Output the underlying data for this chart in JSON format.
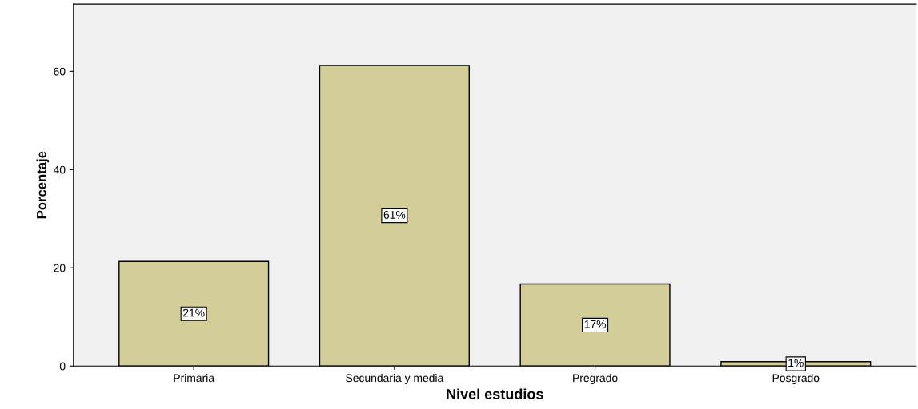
{
  "chart_data": {
    "type": "bar",
    "xlabel": "Nivel estudios",
    "ylabel": "Porcentaje",
    "categories": [
      "Primaria",
      "Secundaria y media",
      "Pregrado",
      "Posgrado"
    ],
    "values": [
      21.3,
      61.2,
      16.7,
      0.9
    ],
    "value_labels": [
      "21%",
      "61%",
      "17%",
      "1%"
    ],
    "color": "#d3ce97",
    "ylim": [
      0,
      73.7
    ],
    "yticks": [
      0,
      20,
      40,
      60
    ],
    "grid": false
  }
}
